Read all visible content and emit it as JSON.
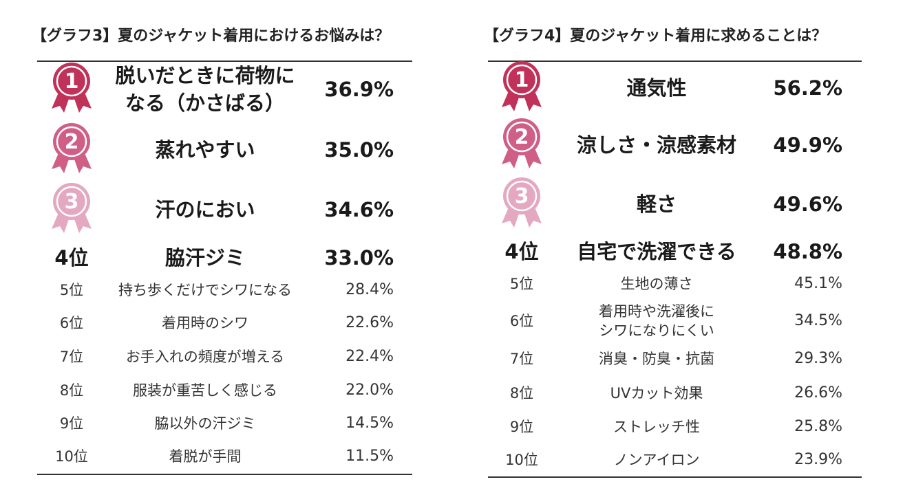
{
  "colors": {
    "gold": "#c0325a",
    "silver": "#cf5f86",
    "bronze": "#e4a8c0",
    "rule": "#333333"
  },
  "chart_data": [
    {
      "type": "table",
      "title": "【グラフ3】夏のジャケット着用におけるお悩みは？",
      "rows": [
        {
          "rank": "1",
          "item": "脱いだときに荷物になる（かさばる）",
          "lines": [
            "脱いだときに荷物に",
            "なる（かさばる）"
          ],
          "value": 36.9,
          "label": "36.9%"
        },
        {
          "rank": "2",
          "item": "蒸れやすい",
          "lines": [
            "蒸れやすい"
          ],
          "value": 35.0,
          "label": "35.0%"
        },
        {
          "rank": "3",
          "item": "汗のにおい",
          "lines": [
            "汗のにおい"
          ],
          "value": 34.6,
          "label": "34.6%"
        },
        {
          "rank": "4位",
          "item": "脇汗ジミ",
          "lines": [
            "脇汗ジミ"
          ],
          "value": 33.0,
          "label": "33.0%"
        },
        {
          "rank": "5位",
          "item": "持ち歩くだけでシワになる",
          "lines": [
            "持ち歩くだけでシワになる"
          ],
          "value": 28.4,
          "label": "28.4%"
        },
        {
          "rank": "6位",
          "item": "着用時のシワ",
          "lines": [
            "着用時のシワ"
          ],
          "value": 22.6,
          "label": "22.6%"
        },
        {
          "rank": "7位",
          "item": "お手入れの頻度が増える",
          "lines": [
            "お手入れの頻度が増える"
          ],
          "value": 22.4,
          "label": "22.4%"
        },
        {
          "rank": "8位",
          "item": "服装が重苦しく感じる",
          "lines": [
            "服装が重苦しく感じる"
          ],
          "value": 22.0,
          "label": "22.0%"
        },
        {
          "rank": "9位",
          "item": "脇以外の汗ジミ",
          "lines": [
            "脇以外の汗ジミ"
          ],
          "value": 14.5,
          "label": "14.5%"
        },
        {
          "rank": "10位",
          "item": "着脱が手間",
          "lines": [
            "着脱が手間"
          ],
          "value": 11.5,
          "label": "11.5%"
        }
      ]
    },
    {
      "type": "table",
      "title": "【グラフ4】夏のジャケット着用に求めることは？",
      "rows": [
        {
          "rank": "1",
          "item": "通気性",
          "lines": [
            "通気性"
          ],
          "value": 56.2,
          "label": "56.2%"
        },
        {
          "rank": "2",
          "item": "涼しさ・涼感素材",
          "lines": [
            "涼しさ・涼感素材"
          ],
          "value": 49.9,
          "label": "49.9%"
        },
        {
          "rank": "3",
          "item": "軽さ",
          "lines": [
            "軽さ"
          ],
          "value": 49.6,
          "label": "49.6%"
        },
        {
          "rank": "4位",
          "item": "自宅で洗濯できる",
          "lines": [
            "自宅で洗濯できる"
          ],
          "value": 48.8,
          "label": "48.8%"
        },
        {
          "rank": "5位",
          "item": "生地の薄さ",
          "lines": [
            "生地の薄さ"
          ],
          "value": 45.1,
          "label": "45.1%"
        },
        {
          "rank": "6位",
          "item": "着用時や洗濯後にシワになりにくい",
          "lines": [
            "着用時や洗濯後に",
            "シワになりにくい"
          ],
          "value": 34.5,
          "label": "34.5%"
        },
        {
          "rank": "7位",
          "item": "消臭・防臭・抗菌",
          "lines": [
            "消臭・防臭・抗菌"
          ],
          "value": 29.3,
          "label": "29.3%"
        },
        {
          "rank": "8位",
          "item": "UVカット効果",
          "lines": [
            "UVカット効果"
          ],
          "value": 26.6,
          "label": "26.6%"
        },
        {
          "rank": "9位",
          "item": "ストレッチ性",
          "lines": [
            "ストレッチ性"
          ],
          "value": 25.8,
          "label": "25.8%"
        },
        {
          "rank": "10位",
          "item": "ノンアイロン",
          "lines": [
            "ノンアイロン"
          ],
          "value": 23.9,
          "label": "23.9%"
        }
      ]
    }
  ]
}
